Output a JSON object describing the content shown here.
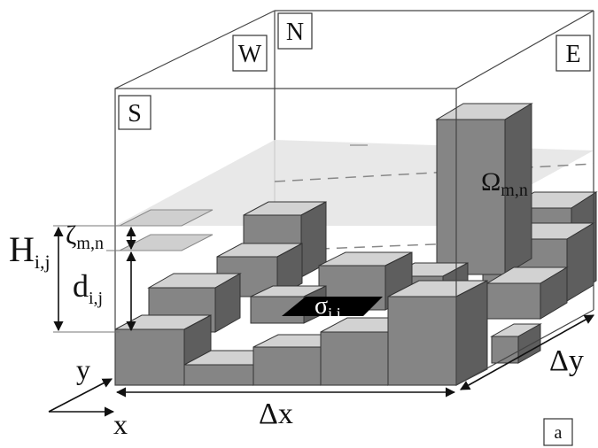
{
  "compass": {
    "south": "S",
    "west": "W",
    "north": "N",
    "east": "E"
  },
  "symbols": {
    "H": {
      "base": "H",
      "sub": "i,j"
    },
    "zeta": {
      "base": "ζ",
      "sub": "m,n"
    },
    "d": {
      "base": "d",
      "sub": "i,j"
    },
    "sigma": {
      "base": "σ",
      "sub": "i,j"
    },
    "omega": {
      "base": "Ω",
      "sub": "m,n"
    },
    "dx": "Δx",
    "dy": "Δy"
  },
  "axes": {
    "x": "x",
    "y": "y"
  },
  "panel_label": "a"
}
